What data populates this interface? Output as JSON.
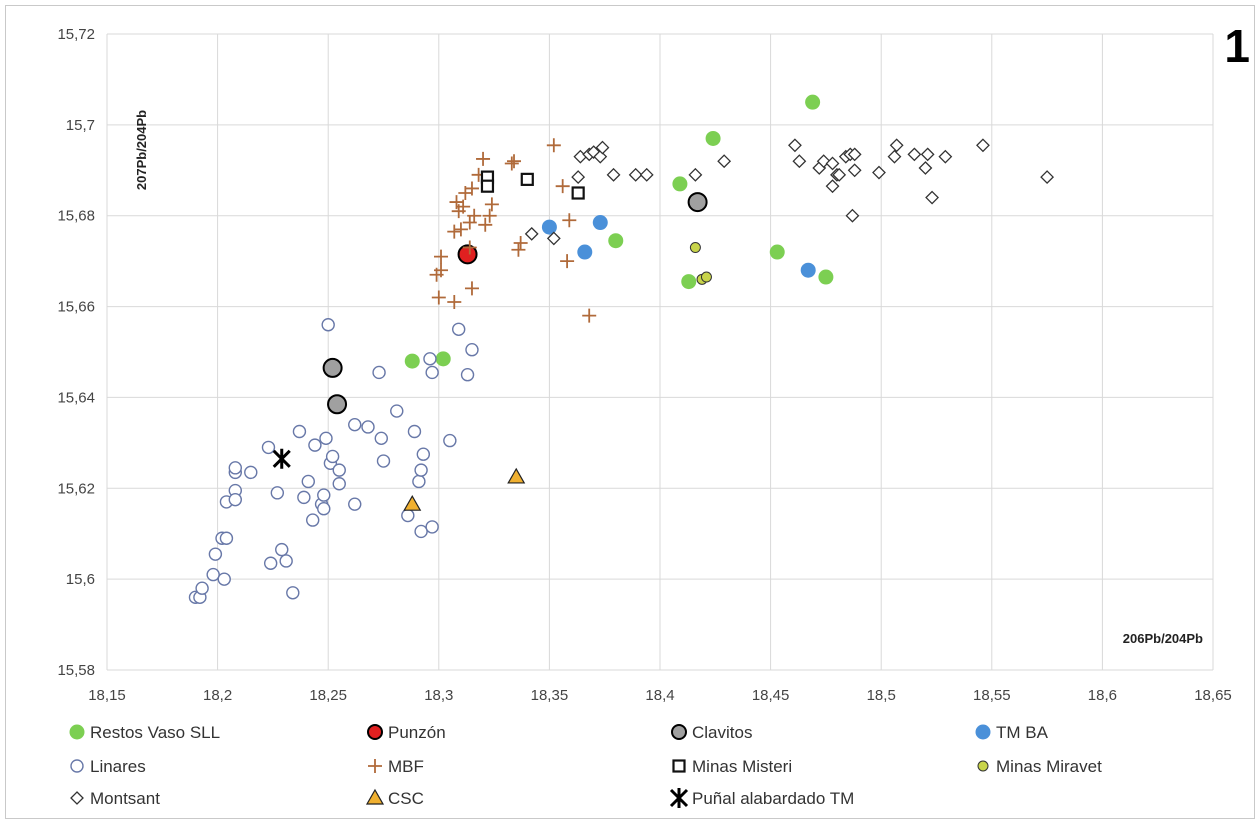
{
  "panel_label": "1",
  "chart_data": {
    "type": "scatter",
    "xlabel": "206Pb/204Pb",
    "ylabel": "207Pb/204Pb",
    "xlim": [
      18.15,
      18.65
    ],
    "ylim": [
      15.58,
      15.72
    ],
    "x_ticks": [
      "18,15",
      "18,2",
      "18,25",
      "18,3",
      "18,35",
      "18,4",
      "18,45",
      "18,5",
      "18,55",
      "18,6",
      "18,65"
    ],
    "y_ticks": [
      "15,58",
      "15,6",
      "15,62",
      "15,64",
      "15,66",
      "15,68",
      "15,7",
      "15,72"
    ],
    "grid": true,
    "legend_position": "bottom",
    "series": [
      {
        "name": "Restos Vaso SLL",
        "marker": "circle-filled",
        "color": "#7ccf52",
        "points": [
          [
            18.288,
            15.648
          ],
          [
            18.302,
            15.6485
          ],
          [
            18.38,
            15.6745
          ],
          [
            18.409,
            15.687
          ],
          [
            18.424,
            15.697
          ],
          [
            18.413,
            15.6655
          ],
          [
            18.453,
            15.672
          ],
          [
            18.469,
            15.705
          ],
          [
            18.475,
            15.6665
          ]
        ]
      },
      {
        "name": "Punzón",
        "marker": "circle-big",
        "color": "#e02020",
        "points": [
          [
            18.313,
            15.6715
          ]
        ]
      },
      {
        "name": "Clavitos",
        "marker": "circle-big",
        "color": "#a0a0a0",
        "points": [
          [
            18.252,
            15.6465
          ],
          [
            18.254,
            15.6385
          ],
          [
            18.417,
            15.683
          ]
        ]
      },
      {
        "name": "TM BA",
        "marker": "circle-filled",
        "color": "#4a90d9",
        "points": [
          [
            18.35,
            15.6775
          ],
          [
            18.366,
            15.672
          ],
          [
            18.373,
            15.6785
          ],
          [
            18.467,
            15.668
          ]
        ]
      },
      {
        "name": "Linares",
        "marker": "circle-open",
        "color": "#6878a8",
        "points": [
          [
            18.19,
            15.596
          ],
          [
            18.192,
            15.596
          ],
          [
            18.193,
            15.598
          ],
          [
            18.198,
            15.601
          ],
          [
            18.199,
            15.6055
          ],
          [
            18.202,
            15.609
          ],
          [
            18.204,
            15.609
          ],
          [
            18.203,
            15.6
          ],
          [
            18.204,
            15.617
          ],
          [
            18.208,
            15.6195
          ],
          [
            18.208,
            15.6175
          ],
          [
            18.208,
            15.6235
          ],
          [
            18.208,
            15.6245
          ],
          [
            18.215,
            15.6235
          ],
          [
            18.223,
            15.629
          ],
          [
            18.224,
            15.6035
          ],
          [
            18.227,
            15.619
          ],
          [
            18.229,
            15.6065
          ],
          [
            18.231,
            15.604
          ],
          [
            18.234,
            15.597
          ],
          [
            18.237,
            15.6325
          ],
          [
            18.239,
            15.618
          ],
          [
            18.241,
            15.6215
          ],
          [
            18.243,
            15.613
          ],
          [
            18.244,
            15.6295
          ],
          [
            18.247,
            15.6165
          ],
          [
            18.248,
            15.6155
          ],
          [
            18.248,
            15.6185
          ],
          [
            18.249,
            15.631
          ],
          [
            18.25,
            15.656
          ],
          [
            18.251,
            15.6255
          ],
          [
            18.252,
            15.627
          ],
          [
            18.255,
            15.624
          ],
          [
            18.255,
            15.621
          ],
          [
            18.262,
            15.6165
          ],
          [
            18.262,
            15.634
          ],
          [
            18.268,
            15.6335
          ],
          [
            18.273,
            15.6455
          ],
          [
            18.274,
            15.631
          ],
          [
            18.275,
            15.626
          ],
          [
            18.281,
            15.637
          ],
          [
            18.286,
            15.614
          ],
          [
            18.289,
            15.6325
          ],
          [
            18.291,
            15.6215
          ],
          [
            18.292,
            15.624
          ],
          [
            18.292,
            15.6105
          ],
          [
            18.293,
            15.6275
          ],
          [
            18.296,
            15.6485
          ],
          [
            18.297,
            15.6455
          ],
          [
            18.297,
            15.6115
          ],
          [
            18.305,
            15.6305
          ],
          [
            18.309,
            15.655
          ],
          [
            18.313,
            15.645
          ],
          [
            18.315,
            15.6505
          ]
        ]
      },
      {
        "name": "MBF",
        "marker": "plus",
        "color": "#b06a3a",
        "points": [
          [
            18.299,
            15.667
          ],
          [
            18.3,
            15.662
          ],
          [
            18.301,
            15.671
          ],
          [
            18.301,
            15.668
          ],
          [
            18.307,
            15.661
          ],
          [
            18.307,
            15.6765
          ],
          [
            18.308,
            15.683
          ],
          [
            18.309,
            15.681
          ],
          [
            18.31,
            15.677
          ],
          [
            18.311,
            15.682
          ],
          [
            18.312,
            15.685
          ],
          [
            18.314,
            15.6785
          ],
          [
            18.314,
            15.673
          ],
          [
            18.315,
            15.664
          ],
          [
            18.315,
            15.686
          ],
          [
            18.316,
            15.68
          ],
          [
            18.318,
            15.689
          ],
          [
            18.32,
            15.6925
          ],
          [
            18.321,
            15.678
          ],
          [
            18.323,
            15.68
          ],
          [
            18.324,
            15.6825
          ],
          [
            18.333,
            15.6915
          ],
          [
            18.334,
            15.692
          ],
          [
            18.336,
            15.6725
          ],
          [
            18.337,
            15.674
          ],
          [
            18.352,
            15.6955
          ],
          [
            18.356,
            15.6865
          ],
          [
            18.358,
            15.67
          ],
          [
            18.359,
            15.679
          ],
          [
            18.368,
            15.658
          ]
        ]
      },
      {
        "name": "Minas Misteri",
        "marker": "square-open",
        "color": "#111111",
        "points": [
          [
            18.322,
            15.6885
          ],
          [
            18.322,
            15.6865
          ],
          [
            18.34,
            15.688
          ],
          [
            18.363,
            15.685
          ]
        ]
      },
      {
        "name": "Minas Miravet",
        "marker": "circle-small",
        "color": "#c8d44a",
        "points": [
          [
            18.416,
            15.673
          ],
          [
            18.419,
            15.666
          ],
          [
            18.421,
            15.6665
          ]
        ]
      },
      {
        "name": "Montsant",
        "marker": "diamond-open",
        "color": "#333333",
        "points": [
          [
            18.342,
            15.676
          ],
          [
            18.352,
            15.675
          ],
          [
            18.363,
            15.6885
          ],
          [
            18.364,
            15.693
          ],
          [
            18.368,
            15.6935
          ],
          [
            18.37,
            15.694
          ],
          [
            18.373,
            15.693
          ],
          [
            18.374,
            15.695
          ],
          [
            18.379,
            15.689
          ],
          [
            18.389,
            15.689
          ],
          [
            18.394,
            15.689
          ],
          [
            18.416,
            15.689
          ],
          [
            18.429,
            15.692
          ],
          [
            18.461,
            15.6955
          ],
          [
            18.463,
            15.692
          ],
          [
            18.472,
            15.6905
          ],
          [
            18.474,
            15.692
          ],
          [
            18.478,
            15.6915
          ],
          [
            18.478,
            15.6865
          ],
          [
            18.48,
            15.689
          ],
          [
            18.481,
            15.689
          ],
          [
            18.484,
            15.693
          ],
          [
            18.486,
            15.6935
          ],
          [
            18.487,
            15.68
          ],
          [
            18.488,
            15.6935
          ],
          [
            18.488,
            15.69
          ],
          [
            18.499,
            15.6895
          ],
          [
            18.506,
            15.693
          ],
          [
            18.507,
            15.6955
          ],
          [
            18.515,
            15.6935
          ],
          [
            18.52,
            15.6905
          ],
          [
            18.521,
            15.6935
          ],
          [
            18.523,
            15.684
          ],
          [
            18.529,
            15.693
          ],
          [
            18.546,
            15.6955
          ],
          [
            18.575,
            15.6885
          ]
        ]
      },
      {
        "name": "CSC",
        "marker": "triangle",
        "color": "#f0b030",
        "points": [
          [
            18.288,
            15.6165
          ],
          [
            18.335,
            15.6225
          ]
        ]
      },
      {
        "name": "Puñal alabardado TM",
        "marker": "star-x",
        "color": "#000000",
        "points": [
          [
            18.229,
            15.6265
          ]
        ]
      }
    ]
  }
}
